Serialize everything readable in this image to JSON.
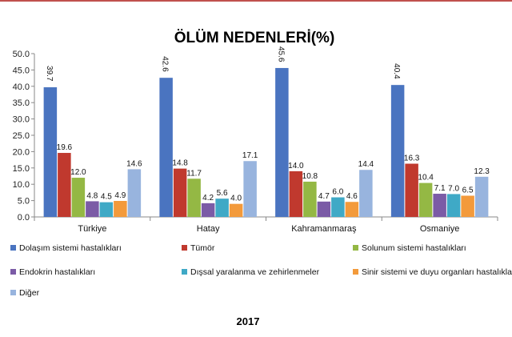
{
  "chart_data": {
    "type": "bar",
    "title": "ÖLÜM NEDENLERİ(%)",
    "footer": "2017",
    "categories": [
      "Türkiye",
      "Hatay",
      "Kahramanmaraş",
      "Osmaniye"
    ],
    "ylim": [
      0,
      50
    ],
    "yticks": [
      "0.0",
      "5.0",
      "10.0",
      "15.0",
      "20.0",
      "25.0",
      "30.0",
      "35.0",
      "40.0",
      "45.0",
      "50.0"
    ],
    "grid": false,
    "legend_position": "bottom",
    "series": [
      {
        "name": "Dolaşım sistemi hastalıkları",
        "color": "#4a74c0",
        "values": [
          39.7,
          42.6,
          45.6,
          40.4
        ],
        "labels": [
          "39.7",
          "42.6",
          "45.6",
          "40.4"
        ]
      },
      {
        "name": "Tümör",
        "color": "#c0392e",
        "values": [
          19.6,
          14.8,
          14.0,
          16.3
        ],
        "labels": [
          "19.6",
          "14.8",
          "14.0",
          "16.3"
        ]
      },
      {
        "name": "Solunum sistemi hastalıkları",
        "color": "#94b844",
        "values": [
          12.0,
          11.7,
          10.8,
          10.4
        ],
        "labels": [
          "12.0",
          "11.7",
          "10.8",
          "10.4"
        ]
      },
      {
        "name": "Endokrin hastalıkları",
        "color": "#7b5ba6",
        "values": [
          4.8,
          4.2,
          4.7,
          7.1
        ],
        "labels": [
          "4.8",
          "4.2",
          "4.7",
          "7.1"
        ]
      },
      {
        "name": "Dışsal yaralanma ve zehirlenmeler",
        "color": "#3fa9c6",
        "values": [
          4.5,
          5.6,
          6.0,
          7.0
        ],
        "labels": [
          "4.5",
          "5.6",
          "6.0",
          "7.0"
        ]
      },
      {
        "name": "Sinir sistemi ve duyu organları hastalıkları",
        "color": "#f39a3b",
        "values": [
          4.9,
          4.0,
          4.6,
          6.5
        ],
        "labels": [
          "4.9",
          "4.0",
          "4.6",
          "6.5"
        ]
      },
      {
        "name": "Diğer",
        "color": "#98b4de",
        "values": [
          14.6,
          17.1,
          14.4,
          12.3
        ],
        "labels": [
          "14.6",
          "17.1",
          "14.4",
          "12.3"
        ]
      }
    ]
  }
}
